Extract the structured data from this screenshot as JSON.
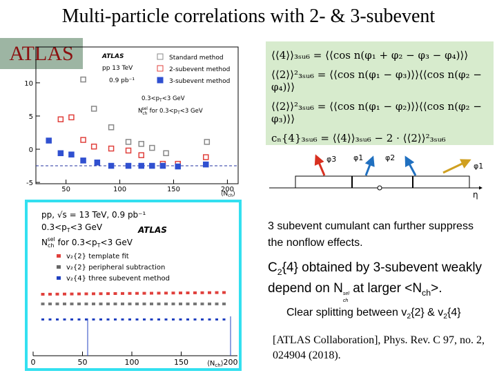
{
  "header": {
    "title": "Multi-particle correlations with 2- & 3-subevent",
    "badge": "ATLAS"
  },
  "top_plot": {
    "type": "scatter",
    "experiment": "ATLAS",
    "energy": "pp 13 TeV",
    "lumi": "0.9 pb⁻¹",
    "cut": [
      "0.3<p",
      "T",
      "<3 GeV"
    ],
    "selection": [
      "N",
      "ch",
      "sel",
      " for 0.3<p",
      "T",
      "<3 GeV"
    ],
    "xlabel": [
      "⟨N",
      "ch",
      "⟩"
    ],
    "xlim": [
      22,
      210
    ],
    "ylim": [
      -5.2,
      15.4
    ],
    "xticks": [
      50,
      100,
      150,
      200
    ],
    "yticks": [
      10,
      5,
      0,
      -5
    ],
    "reference_line": -2.5,
    "series": [
      {
        "name": "Standard method",
        "color": "#888888",
        "marker": "open",
        "x": [
          66,
          76,
          92,
          108,
          120,
          130,
          143,
          181
        ],
        "values": [
          10.5,
          6.1,
          3.3,
          1.1,
          0.8,
          0.2,
          -0.6,
          1.1
        ]
      },
      {
        "name": "2-subevent method",
        "color": "#e0403c",
        "marker": "open",
        "x": [
          45,
          55,
          66,
          76,
          92,
          108,
          120,
          140,
          154,
          180
        ],
        "values": [
          4.5,
          4.8,
          1.4,
          0.4,
          0.1,
          -0.2,
          -0.9,
          -2.2,
          -2.2,
          -1.2
        ]
      },
      {
        "name": "3-subevent method",
        "color": "#3050d0",
        "marker": "filled",
        "x": [
          34,
          45,
          55,
          66,
          79,
          92,
          108,
          120,
          130,
          140,
          154,
          180
        ],
        "values": [
          1.3,
          -0.6,
          -0.8,
          -1.7,
          -2.0,
          -2.5,
          -2.5,
          -2.5,
          -2.5,
          -2.5,
          -2.6,
          -2.3
        ]
      }
    ]
  },
  "formulas": [
    "⟨⟨4⟩⟩₃ₛᵤ₆ = ⟨⟨cos n(φ₁ + φ₂ − φ₃ − φ₄)⟩⟩",
    "⟨⟨2⟩⟩²₃ₛᵤ₆ = ⟨⟨cos n(φ₁ − φ₃)⟩⟩⟨⟨cos n(φ₂ − φ₄)⟩⟩",
    "⟨⟨2⟩⟩²₃ₛᵤ₆ = ⟨⟨cos n(φ₁ − φ₂)⟩⟩⟨⟨cos n(φ₂ − φ₃)⟩⟩",
    "cₙ{4}₃ₛᵤ₆ = ⟨⟨4⟩⟩₃ₛᵤ₆ − 2 · ⟨⟨2⟩⟩²₃ₛᵤ₆"
  ],
  "diagram": {
    "labels": [
      "φ3",
      "φ1",
      "φ2",
      "φ1"
    ],
    "axis": "η"
  },
  "bottom_plot": {
    "energy": "pp, √s = 13 TeV, 0.9 pb⁻¹",
    "cut": [
      "0.3<p",
      "T",
      "<3 GeV"
    ],
    "experiment": "ATLAS",
    "selection": [
      "N",
      "ch",
      "sel",
      " for 0.3<p",
      "T",
      "<3 GeV"
    ],
    "legend": [
      "v₂{2} template fit",
      "v₂{2} peripheral subtraction",
      "v₂{4} three subevent method"
    ],
    "xticks": [
      0,
      50,
      100,
      150,
      200
    ],
    "xlim": [
      0,
      207
    ],
    "xlabel": [
      "⟨N",
      "ch",
      "⟩"
    ]
  },
  "notes": {
    "nonflow": "3 subevent cumulant can further suppress the nonflow effects.",
    "c24": [
      "C",
      "2",
      "{4} obtained by 3-subevent weakly",
      "depend on N",
      "ch",
      "sel",
      " at larger <N",
      "ch",
      ">."
    ],
    "splitting": [
      "Clear splitting between v",
      "2",
      "{2} & v",
      "2",
      "{4}"
    ],
    "reference": "[ATLAS Collaboration], Phys. Rev. C 97, no. 2, 024904 (2018)."
  }
}
